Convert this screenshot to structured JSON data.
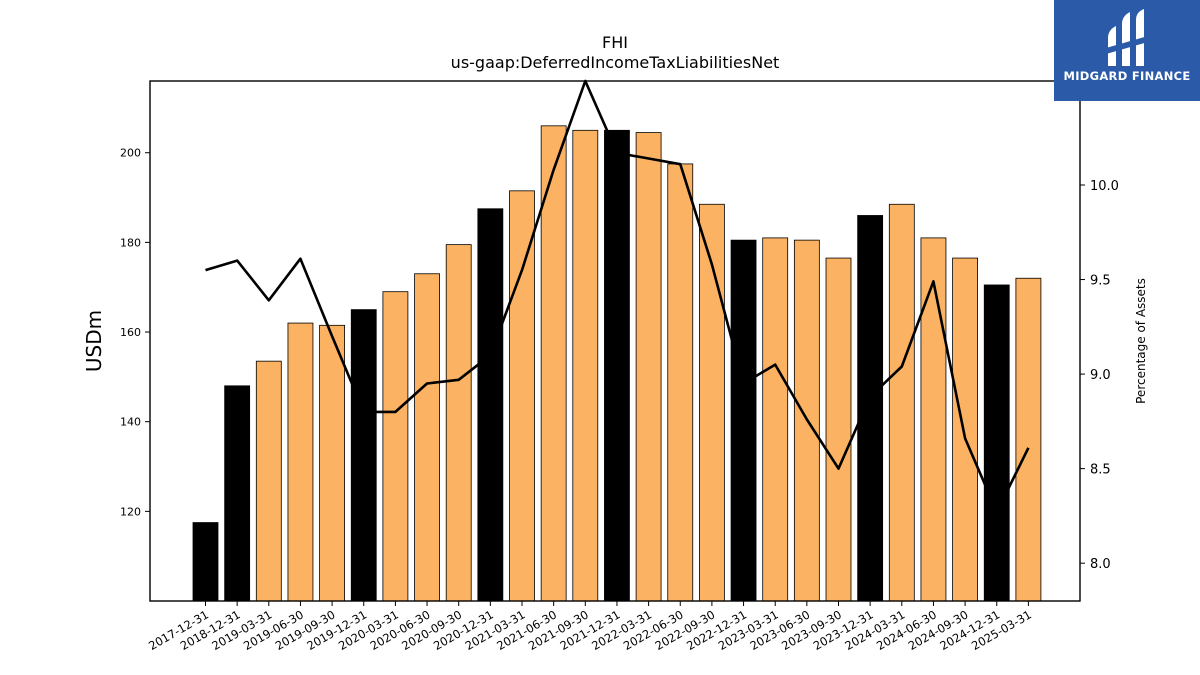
{
  "chart_data": {
    "type": "bar+line",
    "title": "FHI",
    "subtitle": "us-gaap:DeferredIncomeTaxLiabilitiesNet",
    "ylabel": "USDm",
    "y2label": "Percentage of Assets",
    "categories": [
      "2017-12-31",
      "2018-12-31",
      "2019-03-31",
      "2019-06-30",
      "2019-09-30",
      "2019-12-31",
      "2020-03-31",
      "2020-06-30",
      "2020-09-30",
      "2020-12-31",
      "2021-03-31",
      "2021-06-30",
      "2021-09-30",
      "2021-12-31",
      "2022-03-31",
      "2022-06-30",
      "2022-09-30",
      "2022-12-31",
      "2023-03-31",
      "2023-06-30",
      "2023-09-30",
      "2023-12-31",
      "2024-03-31",
      "2024-06-30",
      "2024-09-30",
      "2024-12-31",
      "2025-03-31"
    ],
    "bar_values": [
      117.5,
      148,
      153.5,
      162,
      161.5,
      165,
      169,
      173,
      179.5,
      187.5,
      191.5,
      206,
      205,
      205,
      204.5,
      197.5,
      188.5,
      180.5,
      181,
      180.5,
      176.5,
      186,
      188.5,
      181,
      176.5,
      170.5,
      172
    ],
    "bar_annual": [
      true,
      true,
      false,
      false,
      false,
      true,
      false,
      false,
      false,
      true,
      false,
      false,
      false,
      true,
      false,
      false,
      false,
      true,
      false,
      false,
      false,
      true,
      false,
      false,
      false,
      true,
      false
    ],
    "line_values": [
      9.55,
      9.6,
      9.39,
      9.61,
      9.2,
      8.8,
      8.8,
      8.95,
      8.97,
      9.1,
      9.55,
      10.08,
      10.55,
      10.17,
      10.14,
      10.11,
      9.58,
      8.95,
      9.05,
      8.76,
      8.5,
      8.88,
      9.04,
      9.49,
      8.66,
      8.27,
      8.61
    ],
    "ylim": [
      100,
      216
    ],
    "y2lim": [
      7.8,
      10.55
    ],
    "yticks": [
      120,
      140,
      160,
      180,
      200
    ],
    "y2ticks": [
      "8.0",
      "8.5",
      "9.0",
      "9.5",
      "10.0"
    ],
    "colors": {
      "annual_bar": "#000000",
      "quarter_bar": "#fbb262",
      "line": "#000000",
      "bar_edge": "#000000"
    }
  },
  "logo": {
    "text": "MIDGARD FINANCE",
    "background": "#2b5aa8"
  }
}
